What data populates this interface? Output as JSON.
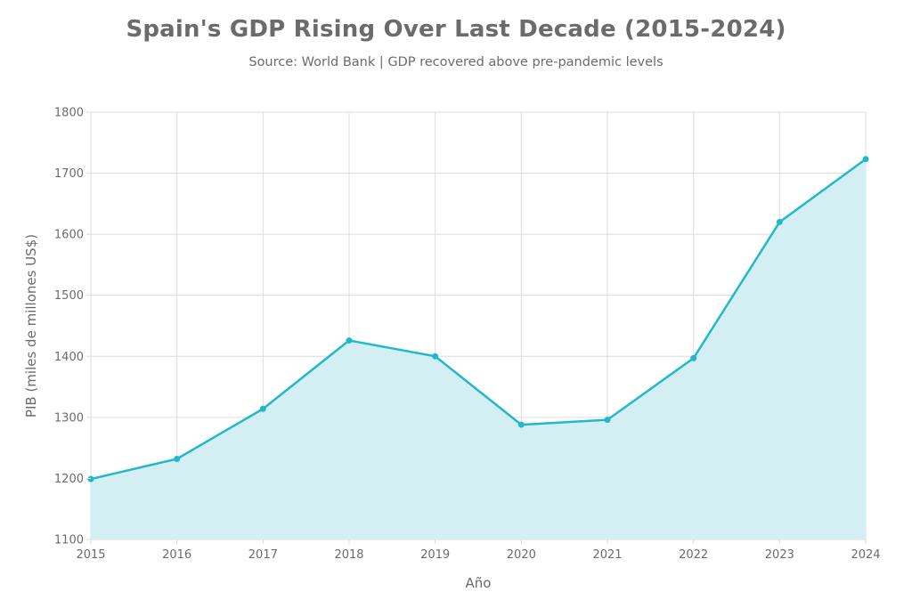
{
  "chart_data": {
    "type": "area",
    "title": "Spain's GDP Rising Over Last Decade (2015-2024)",
    "subtitle": "Source: World Bank | GDP recovered above pre-pandemic levels",
    "xlabel": "Año",
    "ylabel": "PIB (miles de millones US$)",
    "x": [
      "2015",
      "2016",
      "2017",
      "2018",
      "2019",
      "2020",
      "2021",
      "2022",
      "2023",
      "2024"
    ],
    "series": [
      {
        "values": [
          1199,
          1232,
          1314,
          1426,
          1400,
          1288,
          1296,
          1397,
          1620,
          1723
        ]
      }
    ],
    "yticks": [
      1100,
      1200,
      1300,
      1400,
      1500,
      1600,
      1700,
      1800
    ],
    "ylim": [
      1100,
      1800
    ],
    "grid": true,
    "colors": {
      "line": "#22b8cc",
      "fill": "#d3eff3",
      "grid": "#dcdcdc",
      "text": "#6b6b6b"
    }
  }
}
